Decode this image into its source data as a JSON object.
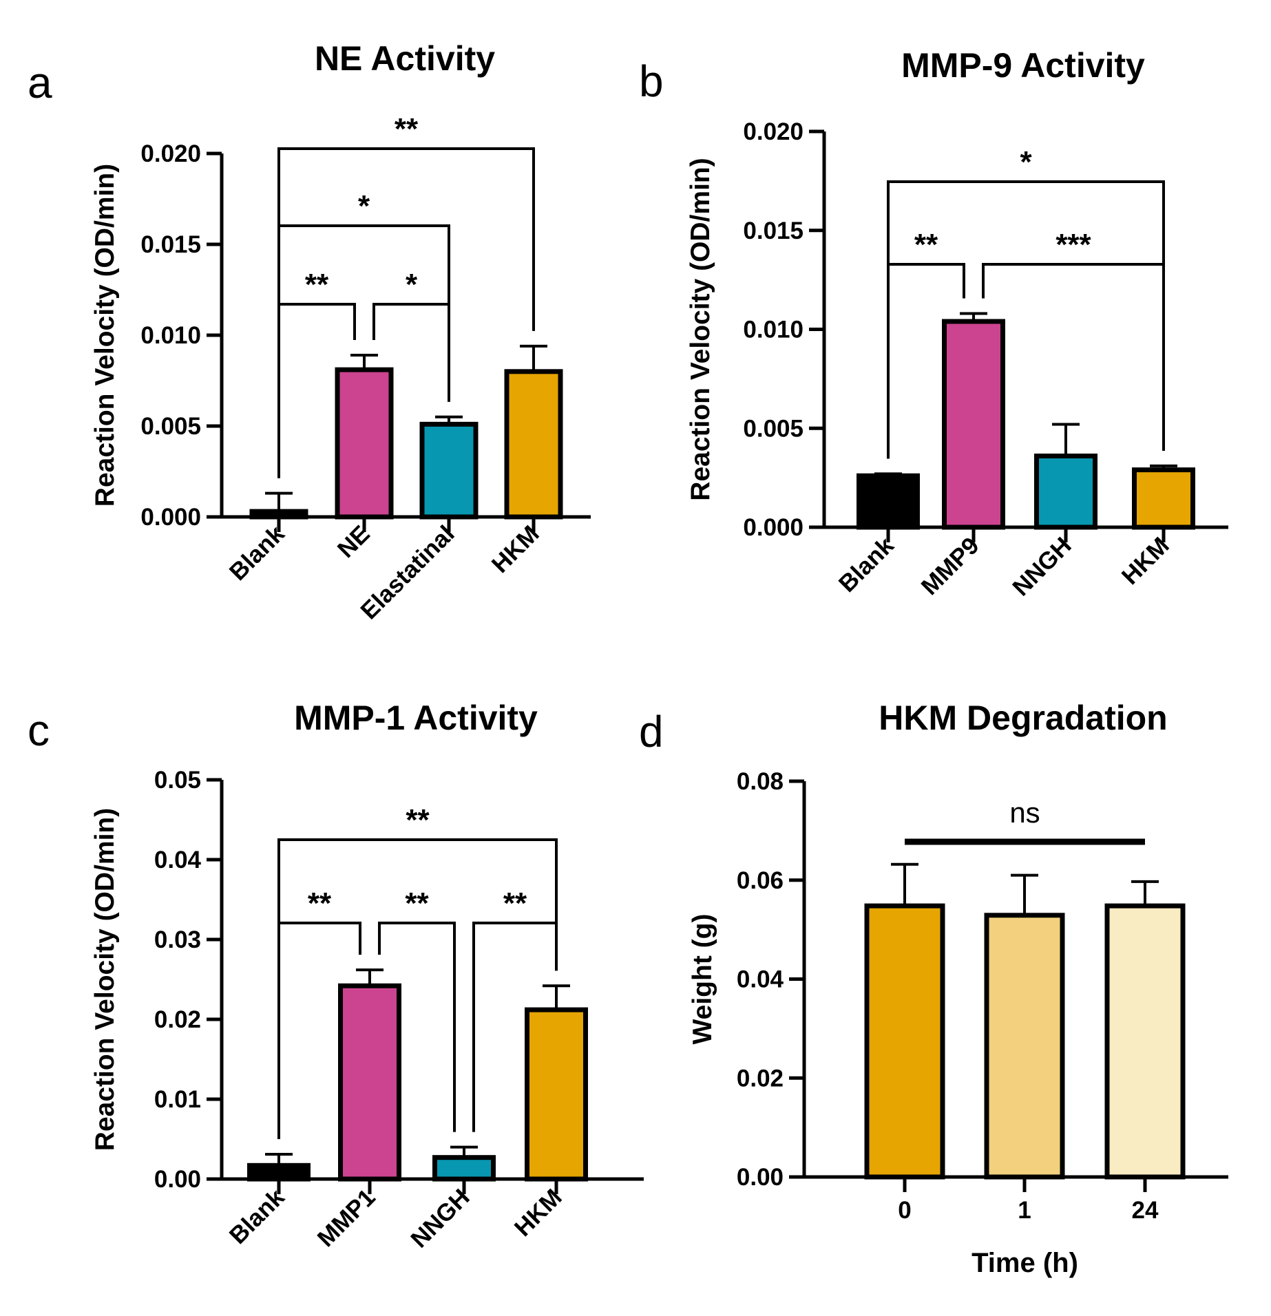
{
  "colors": {
    "black": "#000000",
    "magenta": "#cc4390",
    "teal": "#0897b0",
    "gold": "#e6a500",
    "gold_light": "#f2d07e",
    "gold_pale": "#f9ebc2"
  },
  "chart_data": [
    {
      "panel": "a",
      "type": "bar",
      "title": "NE Activity",
      "ylabel": "Reaction Velocity (OD/min)",
      "xlabel": "",
      "ylim": [
        0,
        0.02
      ],
      "yticks": [
        "0.000",
        "0.005",
        "0.010",
        "0.015",
        "0.020"
      ],
      "categories": [
        "Blank",
        "NE",
        "Elastatinal",
        "HKM"
      ],
      "values": [
        0.0003,
        0.0081,
        0.0051,
        0.008
      ],
      "errors": [
        0.001,
        0.0008,
        0.0004,
        0.0014
      ],
      "bar_colors": [
        "#000000",
        "#cc4390",
        "#0897b0",
        "#e6a500"
      ],
      "significance": [
        {
          "from": 0,
          "to": 1,
          "label": "**"
        },
        {
          "from": 1,
          "to": 2,
          "label": "*"
        },
        {
          "from": 0,
          "to": 2,
          "label": "*"
        },
        {
          "from": 0,
          "to": 3,
          "label": "**"
        }
      ]
    },
    {
      "panel": "b",
      "type": "bar",
      "title": "MMP-9 Activity",
      "ylabel": "Reaction Velocity (OD/min)",
      "xlabel": "",
      "ylim": [
        0,
        0.02
      ],
      "yticks": [
        "0.000",
        "0.005",
        "0.010",
        "0.015",
        "0.020"
      ],
      "categories": [
        "Blank",
        "MMP9",
        "NNGH",
        "HKM"
      ],
      "values": [
        0.0026,
        0.0104,
        0.0036,
        0.0029
      ],
      "errors": [
        0.0001,
        0.0004,
        0.0016,
        0.0002
      ],
      "bar_colors": [
        "#000000",
        "#cc4390",
        "#0897b0",
        "#e6a500"
      ],
      "significance": [
        {
          "from": 0,
          "to": 1,
          "label": "**"
        },
        {
          "from": 1,
          "to": 3,
          "label": "***"
        },
        {
          "from": 0,
          "to": 3,
          "label": "*"
        }
      ]
    },
    {
      "panel": "c",
      "type": "bar",
      "title": "MMP-1 Activity",
      "ylabel": "Reaction Velocity (OD/min)",
      "xlabel": "",
      "ylim": [
        0,
        0.05
      ],
      "yticks": [
        "0.00",
        "0.01",
        "0.02",
        "0.03",
        "0.04",
        "0.05"
      ],
      "categories": [
        "Blank",
        "MMP1",
        "NNGH",
        "HKM"
      ],
      "values": [
        0.0017,
        0.0242,
        0.0027,
        0.0212
      ],
      "errors": [
        0.0014,
        0.002,
        0.0013,
        0.003
      ],
      "bar_colors": [
        "#000000",
        "#cc4390",
        "#0897b0",
        "#e6a500"
      ],
      "significance": [
        {
          "from": 0,
          "to": 1,
          "label": "**"
        },
        {
          "from": 1,
          "to": 2,
          "label": "**"
        },
        {
          "from": 2,
          "to": 3,
          "label": "**"
        },
        {
          "from": 0,
          "to": 3,
          "label": "**"
        }
      ]
    },
    {
      "panel": "d",
      "type": "bar",
      "title": "HKM Degradation",
      "ylabel": "Weight (g)",
      "xlabel": "Time (h)",
      "ylim": [
        0,
        0.08
      ],
      "yticks": [
        "0.00",
        "0.02",
        "0.04",
        "0.06",
        "0.08"
      ],
      "categories": [
        "0",
        "1",
        "24"
      ],
      "values": [
        0.0548,
        0.0529,
        0.0548
      ],
      "errors": [
        0.0084,
        0.0081,
        0.0049
      ],
      "bar_colors": [
        "#e6a500",
        "#f2d07e",
        "#f9ebc2"
      ],
      "significance": [
        {
          "from": 0,
          "to": 2,
          "label": "ns"
        }
      ]
    }
  ]
}
